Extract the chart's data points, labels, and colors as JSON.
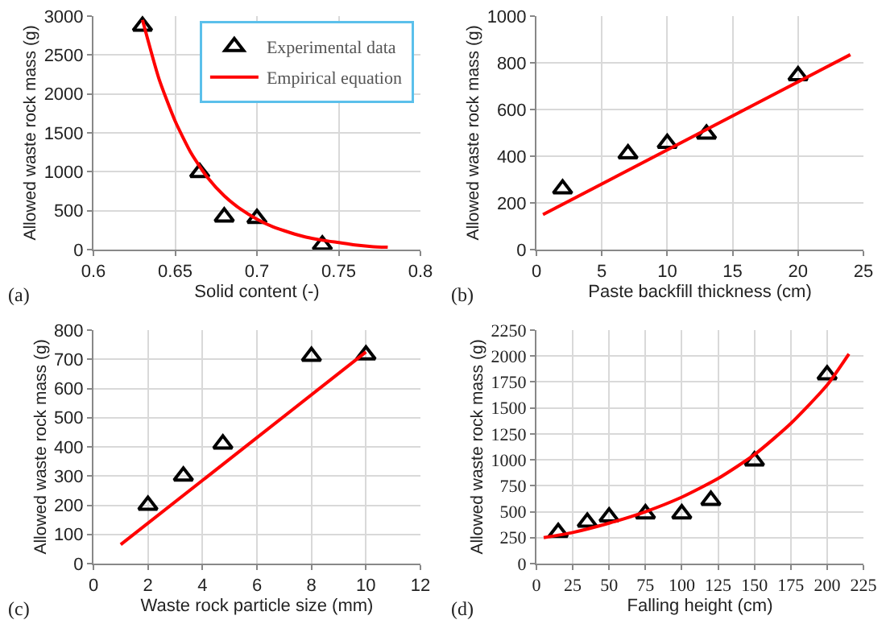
{
  "chart_data": [
    {
      "type": "scatter",
      "xlabel": "Solid content (-)",
      "ylabel": "Allowed waste rock mass (g)",
      "xlim": [
        0.6,
        0.8
      ],
      "xticks": [
        0.6,
        0.65,
        0.7,
        0.75,
        0.8
      ],
      "ylim": [
        0,
        3000
      ],
      "yticks": [
        0,
        500,
        1000,
        1500,
        2000,
        2500,
        3000
      ],
      "grid": true,
      "legend": "top right",
      "annotations": [
        "(a)"
      ],
      "series": [
        {
          "name": "Experimental data",
          "color": "#000000",
          "marker": "triangle",
          "x": [
            0.63,
            0.665,
            0.68,
            0.7,
            0.74
          ],
          "values": [
            2870,
            990,
            420,
            400,
            60
          ]
        },
        {
          "type": "line",
          "name": "Empirical equation",
          "color": "#ff0000",
          "marker": "none",
          "x": [
            0.63,
            0.64,
            0.65,
            0.66,
            0.67,
            0.68,
            0.69,
            0.7,
            0.71,
            0.72,
            0.73,
            0.74,
            0.75,
            0.76,
            0.77,
            0.78
          ],
          "values": [
            2950,
            2200,
            1650,
            1230,
            920,
            690,
            520,
            390,
            290,
            220,
            160,
            120,
            90,
            60,
            40,
            30
          ]
        }
      ]
    },
    {
      "type": "scatter",
      "xlabel": "Paste backfill thickness (cm)",
      "ylabel": "Allowed waste rock mass (g)",
      "xlim": [
        0,
        25
      ],
      "xticks": [
        0,
        5,
        10,
        15,
        20,
        25
      ],
      "ylim": [
        0,
        1000
      ],
      "yticks": [
        0,
        200,
        400,
        600,
        800,
        1000
      ],
      "grid": true,
      "annotations": [
        "(b)"
      ],
      "series": [
        {
          "color": "#000000",
          "marker": "triangle",
          "x": [
            2,
            7,
            10,
            13,
            20
          ],
          "values": [
            260,
            410,
            455,
            495,
            745
          ]
        },
        {
          "type": "line",
          "color": "#ff0000",
          "marker": "none",
          "x": [
            0.5,
            24
          ],
          "values": [
            150,
            835
          ]
        }
      ]
    },
    {
      "type": "scatter",
      "xlabel": "Waste rock particle size (mm)",
      "ylabel": "Allowed waste rock mass (g)",
      "xlim": [
        0,
        12
      ],
      "xticks": [
        0,
        2,
        4,
        6,
        8,
        10,
        12
      ],
      "ylim": [
        0,
        800
      ],
      "yticks": [
        0,
        100,
        200,
        300,
        400,
        500,
        600,
        700,
        800
      ],
      "grid": true,
      "annotations": [
        "(c)"
      ],
      "series": [
        {
          "color": "#000000",
          "marker": "triangle",
          "x": [
            2,
            3.3,
            4.75,
            8,
            10
          ],
          "values": [
            200,
            300,
            410,
            710,
            715
          ]
        },
        {
          "type": "line",
          "color": "#ff0000",
          "marker": "none",
          "x": [
            1,
            10
          ],
          "values": [
            65,
            725
          ]
        }
      ]
    },
    {
      "type": "scatter",
      "xlabel": "Falling height (cm)",
      "ylabel": "Allowed waste rock mass (g)",
      "xlim": [
        0,
        225
      ],
      "xticks": [
        0,
        25,
        50,
        75,
        100,
        125,
        150,
        175,
        200,
        225
      ],
      "ylim": [
        0,
        2250
      ],
      "yticks": [
        0,
        250,
        500,
        750,
        1000,
        1250,
        1500,
        1750,
        2000,
        2250
      ],
      "grid": true,
      "annotations": [
        "(d)"
      ],
      "series": [
        {
          "color": "#000000",
          "marker": "triangle",
          "x": [
            15,
            35,
            50,
            75,
            100,
            120,
            150,
            200
          ],
          "values": [
            300,
            400,
            450,
            480,
            480,
            610,
            990,
            1820
          ]
        },
        {
          "type": "line",
          "color": "#ff0000",
          "marker": "none",
          "x": [
            5,
            25,
            50,
            75,
            100,
            125,
            150,
            175,
            200,
            215
          ],
          "values": [
            250,
            300,
            390,
            500,
            640,
            820,
            1050,
            1350,
            1720,
            2020
          ]
        }
      ]
    }
  ]
}
